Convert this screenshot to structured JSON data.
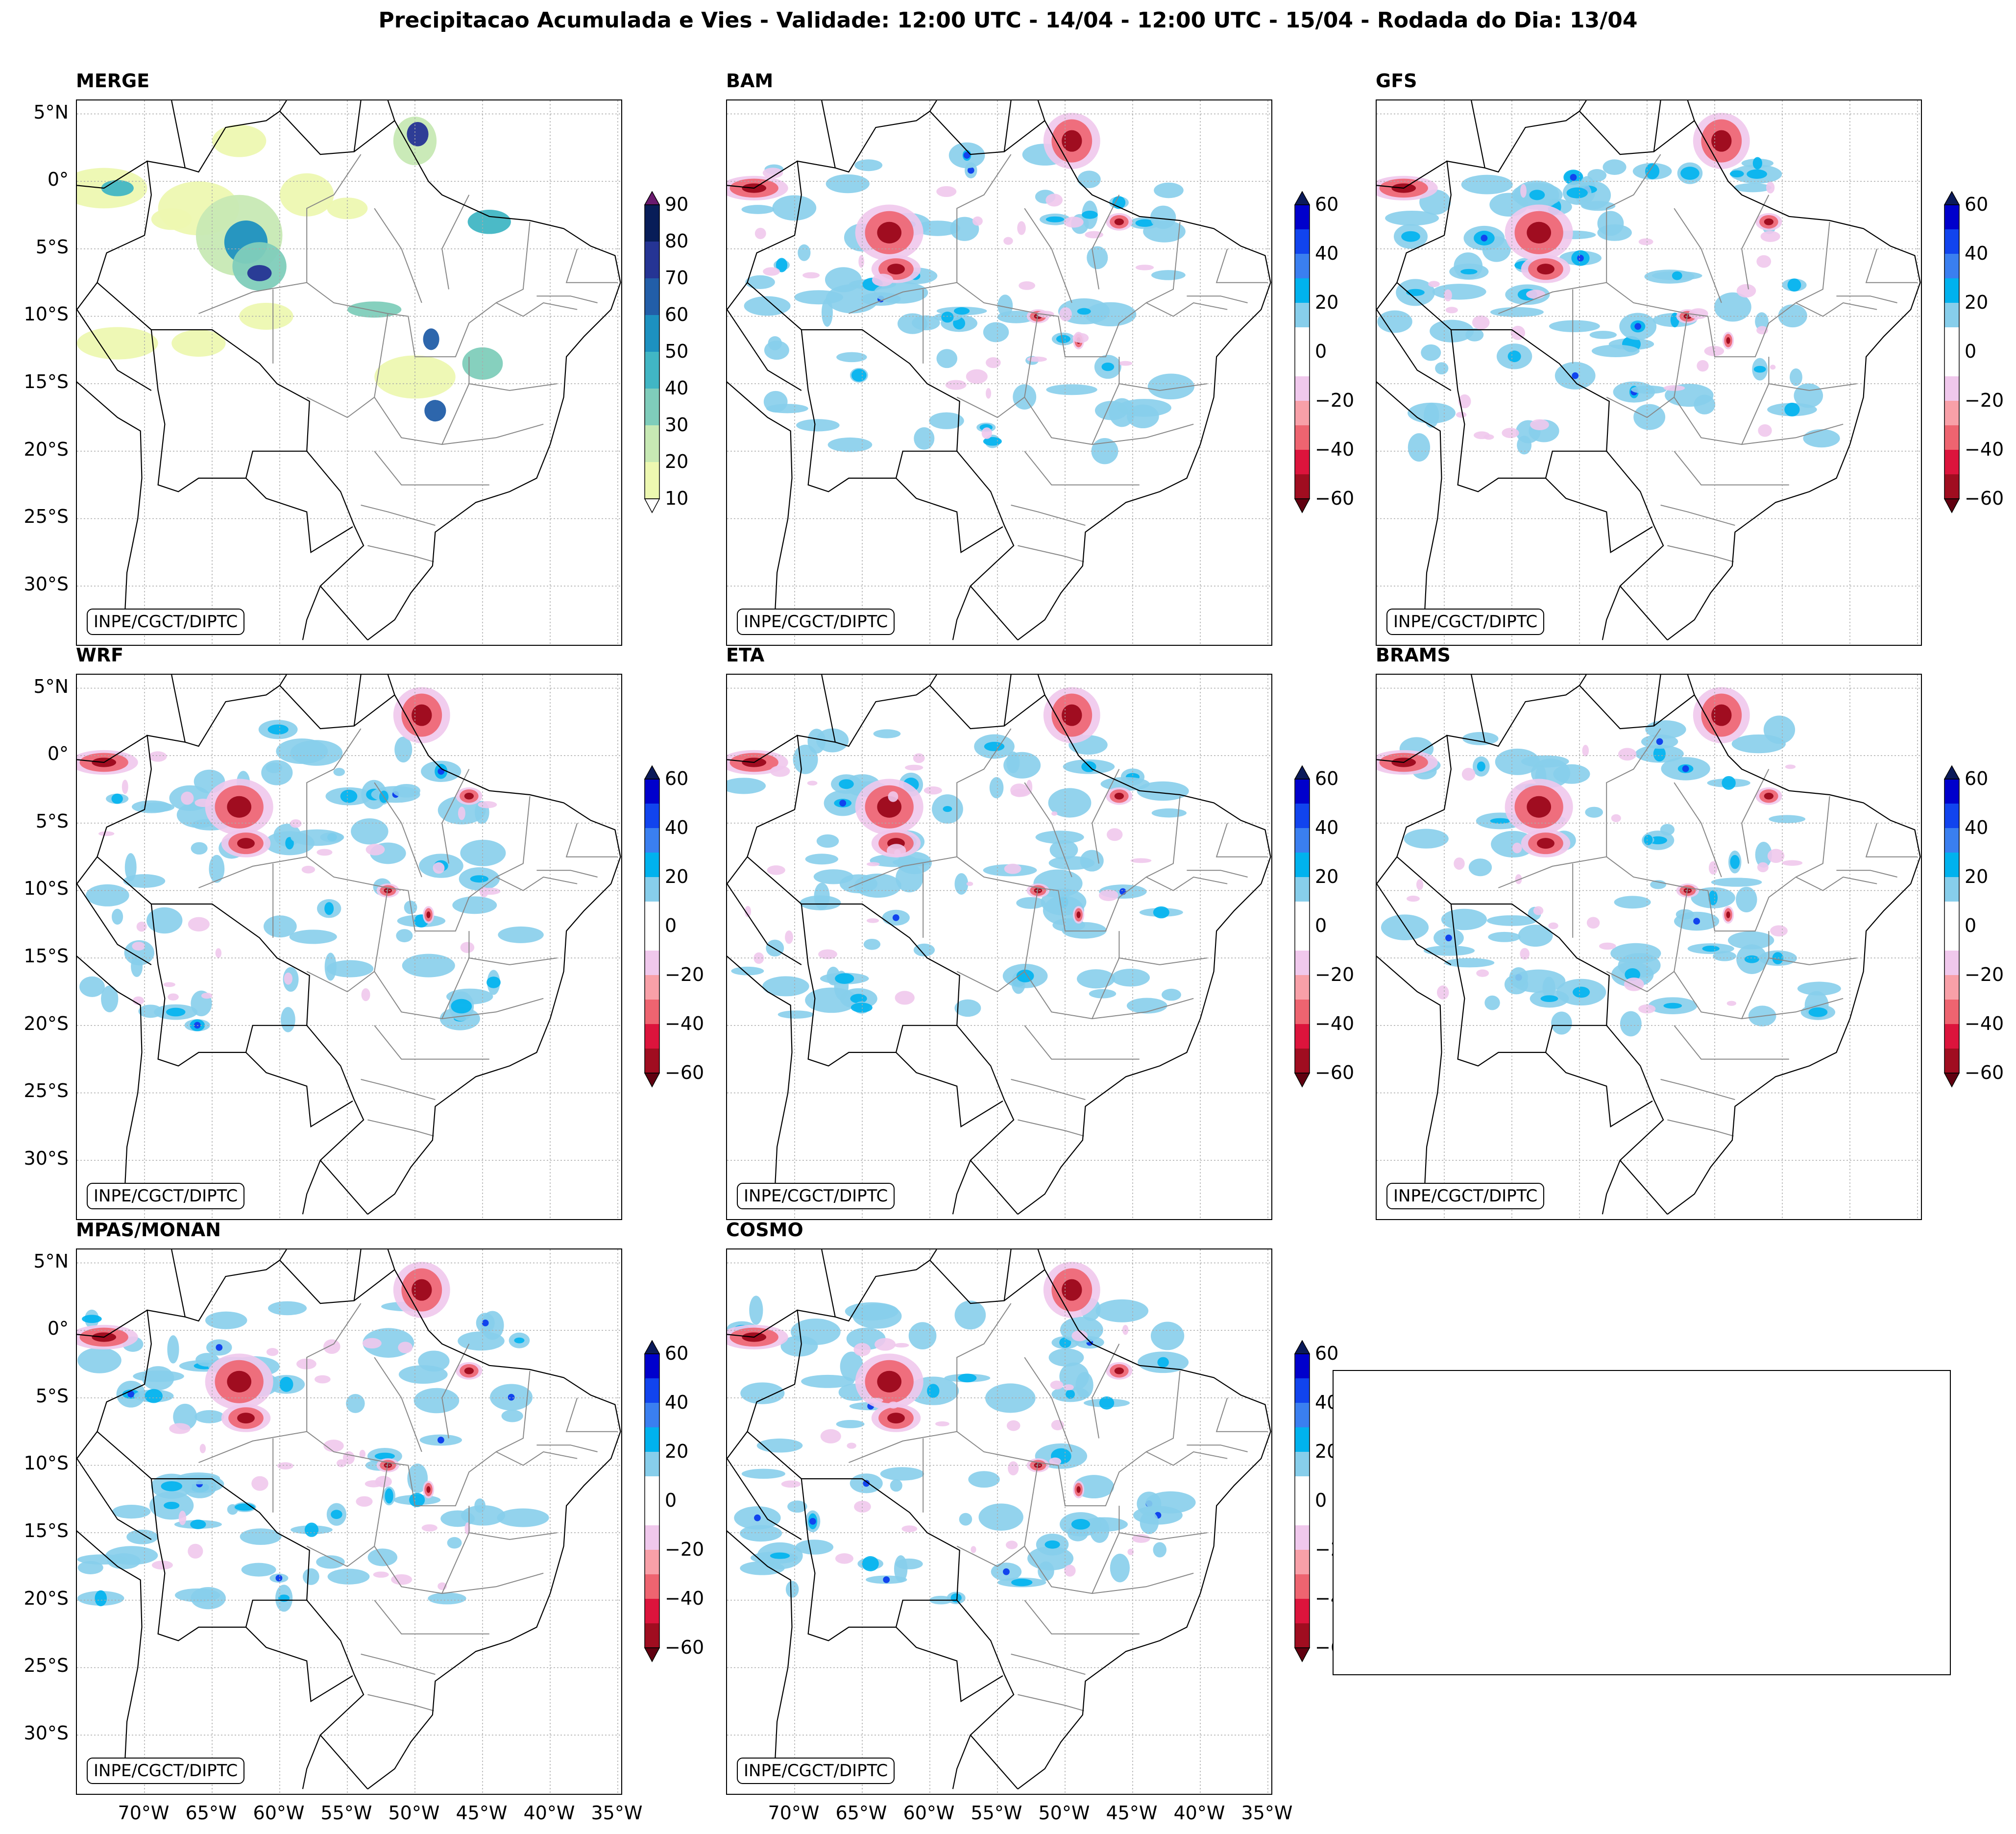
{
  "title": "Precipitacao Acumulada e Vies - Validade: 12:00 UTC - 14/04 - 12:00 UTC - 15/04 - Rodada do Dia: 13/04",
  "credit": "INPE/CGCT/DIPTC",
  "lat_labels": [
    "5°N",
    "0°",
    "5°S",
    "10°S",
    "15°S",
    "20°S",
    "25°S",
    "30°S"
  ],
  "lon_labels": [
    "70°W",
    "65°W",
    "60°W",
    "55°W",
    "50°W",
    "45°W",
    "40°W",
    "35°W"
  ],
  "panels": [
    {
      "name": "MERGE",
      "kind": "precip"
    },
    {
      "name": "BAM",
      "kind": "bias"
    },
    {
      "name": "GFS",
      "kind": "bias"
    },
    {
      "name": "WRF",
      "kind": "bias"
    },
    {
      "name": "ETA",
      "kind": "bias"
    },
    {
      "name": "BRAMS",
      "kind": "bias"
    },
    {
      "name": "MPAS/MONAN",
      "kind": "bias"
    },
    {
      "name": "COSMO",
      "kind": "bias"
    }
  ],
  "precip_colorbar": {
    "labels": [
      "90",
      "80",
      "70",
      "60",
      "50",
      "40",
      "30",
      "20",
      "10"
    ],
    "colors": [
      "#081d58",
      "#253494",
      "#225ea8",
      "#1d91c0",
      "#41b6c4",
      "#7fcdbb",
      "#c7e9b4",
      "#edf8b1"
    ],
    "over_color": "#6a1a6e"
  },
  "bias_colorbar": {
    "labels": [
      "60",
      "40",
      "20",
      "0",
      "−20",
      "−40",
      "−60"
    ],
    "colors": [
      "#0000cc",
      "#1144ee",
      "#3a7ff0",
      "#00b2ee",
      "#87ceeb",
      "#ffffff",
      "#ffffff",
      "#f0c8ec",
      "#f8a0a8",
      "#ee6470",
      "#dc143c",
      "#a00d20"
    ],
    "over_color": "#0b1a5a",
    "under_color": "#600010"
  },
  "map_colors": {
    "country_border": "#000000",
    "state_border": "#888888",
    "gridline": "#aaaaaa"
  }
}
